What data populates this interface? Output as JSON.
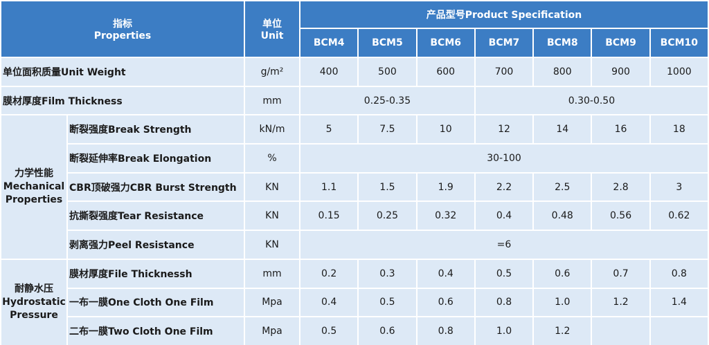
{
  "header": {
    "properties_cn": "指标",
    "properties_en": "Properties",
    "unit_cn": "单位",
    "unit_en": "Unit",
    "specification": "产品型号Product Specification",
    "models": [
      "BCM4",
      "BCM5",
      "BCM6",
      "BCM7",
      "BCM8",
      "BCM9",
      "BCM10"
    ]
  },
  "groups": [
    {
      "name_cn": "力学性能",
      "name_en": "Mechanical Properties"
    },
    {
      "name_cn": "耐静水压",
      "name_en": "Hydrostatic Pressure"
    }
  ],
  "rows": [
    {
      "label": "单位面积质量Unit Weight",
      "unit": "g/m²",
      "values": [
        "400",
        "500",
        "600",
        "700",
        "800",
        "900",
        "1000"
      ]
    },
    {
      "label": "膜材厚度Film Thickness",
      "unit": "mm",
      "values": [
        "0.25-0.35",
        "0.30-0.50"
      ]
    },
    {
      "label": "断裂强度Break Strength",
      "unit": "kN/m",
      "values": [
        "5",
        "7.5",
        "10",
        "12",
        "14",
        "16",
        "18"
      ]
    },
    {
      "label": "断裂延伸率Break Elongation",
      "unit": "%",
      "values": [
        "30-100"
      ]
    },
    {
      "label": "CBR顶破强力CBR Burst Strength",
      "unit": "KN",
      "values": [
        "1.1",
        "1.5",
        "1.9",
        "2.2",
        "2.5",
        "2.8",
        "3"
      ]
    },
    {
      "label": "抗撕裂强度Tear Resistance",
      "unit": "KN",
      "values": [
        "0.15",
        "0.25",
        "0.32",
        "0.4",
        "0.48",
        "0.56",
        "0.62"
      ]
    },
    {
      "label": "剥离强力Peel Resistance",
      "unit": "KN",
      "values": [
        "=6"
      ]
    },
    {
      "label": "膜材厚度File Thicknessh",
      "unit": "mm",
      "values": [
        "0.2",
        "0.3",
        "0.4",
        "0.5",
        "0.6",
        "0.7",
        "0.8"
      ]
    },
    {
      "label": "一布一膜One Cloth One Film",
      "unit": "Mpa",
      "values": [
        "0.4",
        "0.5",
        "0.6",
        "0.8",
        "1.0",
        "1.2",
        "1.4"
      ]
    },
    {
      "label": "二布一膜Two Cloth One Film",
      "unit": "Mpa",
      "values": [
        "0.5",
        "0.6",
        "0.8",
        "1.0",
        "1.2"
      ]
    }
  ]
}
